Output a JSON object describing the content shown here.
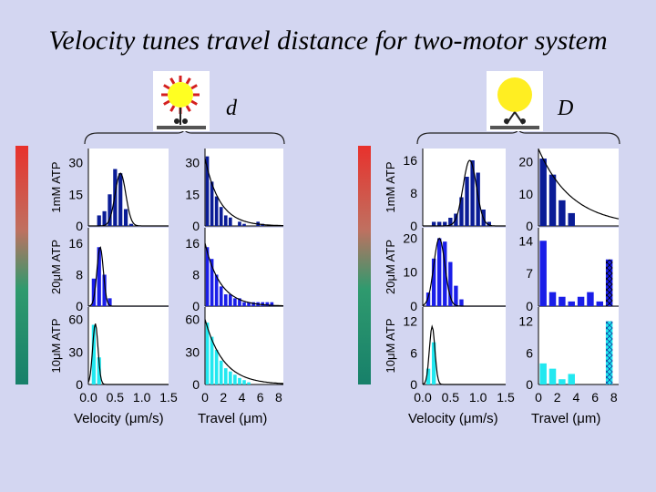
{
  "title": "Velocity tunes travel distance for two-motor system",
  "colors": {
    "background": "#d3d6f1",
    "row_1mM": "#0a1c96",
    "row_20uM": "#1a1ee8",
    "row_10uM": "#22e8f0",
    "fit_curve": "#000000",
    "bead_small": "#ffff22",
    "bead_large": "#ffee22",
    "motor_red": "#d42020",
    "track": "#555555"
  },
  "icons": {
    "left_bead": "bead-with-many-motors-icon",
    "right_bead": "bead-with-two-motors-icon",
    "row_marker": "gradient-bar-icon"
  },
  "panels": [
    {
      "letter": "d",
      "row_labels": [
        "1mM ATP",
        "20μM ATP",
        "10μM ATP"
      ],
      "xlabel_velocity": "Velocity (μm/s)",
      "xlabel_travel": "Travel (μm)",
      "velocity_ticks": [
        "0.0",
        "0.5",
        "1.0",
        "1.5"
      ],
      "travel_ticks": [
        "0",
        "2",
        "4",
        "6",
        "8"
      ]
    },
    {
      "letter": "D",
      "row_labels": [
        "1mM ATP",
        "20μM ATP",
        "10μM ATP"
      ],
      "xlabel_velocity": "Velocity (μm/s)",
      "xlabel_travel": "Travel (μm)",
      "velocity_ticks": [
        "0.0",
        "0.5",
        "1.0",
        "1.5"
      ],
      "travel_ticks": [
        "0",
        "2",
        "4",
        "6",
        "8"
      ]
    }
  ],
  "chart_data": [
    {
      "type": "bar",
      "panel": "d",
      "row": "1mM ATP",
      "measure": "velocity",
      "x": [
        0.2,
        0.3,
        0.4,
        0.5,
        0.6,
        0.7,
        0.8
      ],
      "values": [
        5,
        7,
        15,
        27,
        25,
        8,
        1
      ],
      "fit": "gaussian",
      "fit_mean": 0.6,
      "fit_sd": 0.1,
      "fit_peak": 25,
      "xlim": [
        0,
        1.5
      ],
      "ylim": [
        0,
        35
      ],
      "yticks": [
        "0",
        "15",
        "30"
      ]
    },
    {
      "type": "bar",
      "panel": "d",
      "row": "1mM ATP",
      "measure": "travel",
      "x": [
        0.25,
        0.75,
        1.25,
        1.75,
        2.25,
        2.75,
        3.75,
        4.25,
        5.75,
        6.25
      ],
      "values": [
        33,
        21,
        14,
        9,
        5,
        4,
        2,
        1,
        2,
        1
      ],
      "fit": "exponential",
      "fit_a": 32,
      "fit_k": 0.62,
      "xlim": [
        0,
        8.5
      ],
      "ylim": [
        0,
        35
      ],
      "yticks": [
        "0",
        "15",
        "30"
      ]
    },
    {
      "type": "bar",
      "panel": "d",
      "row": "20μM ATP",
      "measure": "velocity",
      "x": [
        0.1,
        0.2,
        0.3,
        0.4
      ],
      "values": [
        7,
        15,
        8,
        2
      ],
      "fit": "gaussian",
      "fit_mean": 0.22,
      "fit_sd": 0.06,
      "fit_peak": 15,
      "xlim": [
        0,
        1.5
      ],
      "ylim": [
        0,
        19
      ],
      "yticks": [
        "0",
        "8",
        "16"
      ]
    },
    {
      "type": "bar",
      "panel": "d",
      "row": "20μM ATP",
      "measure": "travel",
      "x": [
        0.25,
        0.75,
        1.25,
        1.75,
        2.25,
        2.75,
        3.25,
        3.75,
        4.25,
        4.75,
        5.25,
        5.75,
        6.25,
        6.75,
        7.25
      ],
      "values": [
        15,
        12,
        8,
        5,
        3,
        3,
        2,
        2,
        1,
        1,
        1,
        1,
        1,
        1,
        1
      ],
      "fit": "exponential",
      "fit_a": 16,
      "fit_k": 0.6,
      "xlim": [
        0,
        8.5
      ],
      "ylim": [
        0,
        19
      ],
      "yticks": [
        "0",
        "8",
        "16"
      ]
    },
    {
      "type": "bar",
      "panel": "d",
      "row": "10μM ATP",
      "measure": "velocity",
      "x": [
        0.1,
        0.2
      ],
      "values": [
        55,
        25
      ],
      "fit": "gaussian",
      "fit_mean": 0.13,
      "fit_sd": 0.05,
      "fit_peak": 56,
      "xlim": [
        0,
        1.5
      ],
      "ylim": [
        0,
        68
      ],
      "yticks": [
        "0",
        "30",
        "60"
      ]
    },
    {
      "type": "bar",
      "panel": "d",
      "row": "10μM ATP",
      "measure": "travel",
      "x": [
        0.25,
        0.75,
        1.25,
        1.75,
        2.25,
        2.75,
        3.25,
        3.75,
        4.25,
        4.75
      ],
      "values": [
        57,
        44,
        32,
        22,
        15,
        12,
        9,
        6,
        4,
        2
      ],
      "fit": "exponential",
      "fit_a": 60,
      "fit_k": 0.5,
      "xlim": [
        0,
        8.5
      ],
      "ylim": [
        0,
        68
      ],
      "yticks": [
        "0",
        "30",
        "60"
      ]
    },
    {
      "type": "bar",
      "panel": "D",
      "row": "1mM ATP",
      "measure": "velocity",
      "x": [
        0.2,
        0.3,
        0.4,
        0.5,
        0.6,
        0.7,
        0.8,
        0.9,
        1.0,
        1.1,
        1.2
      ],
      "values": [
        1,
        1,
        1,
        2,
        3,
        7,
        12,
        16,
        13,
        4,
        1
      ],
      "fit": "gaussian",
      "fit_mean": 0.85,
      "fit_sd": 0.12,
      "fit_peak": 16,
      "xlim": [
        0,
        1.5
      ],
      "ylim": [
        0,
        18
      ],
      "yticks": [
        "0",
        "8",
        "16"
      ]
    },
    {
      "type": "bar",
      "panel": "D",
      "row": "1mM ATP",
      "measure": "travel",
      "x": [
        0.5,
        1.5,
        2.5,
        3.5
      ],
      "values": [
        21,
        16,
        8,
        4
      ],
      "fit": "exponential",
      "fit_a": 24,
      "fit_k": 0.28,
      "xlim": [
        0,
        8.5
      ],
      "ylim": [
        0,
        23
      ],
      "yticks": [
        "0",
        "10",
        "20"
      ]
    },
    {
      "type": "bar",
      "panel": "D",
      "row": "20μM ATP",
      "measure": "velocity",
      "x": [
        0.1,
        0.2,
        0.3,
        0.4,
        0.5,
        0.6,
        0.7
      ],
      "values": [
        4,
        14,
        20,
        19,
        13,
        6,
        2
      ],
      "fit": "gaussian",
      "fit_mean": 0.3,
      "fit_sd": 0.1,
      "fit_peak": 20,
      "xlim": [
        0,
        1.5
      ],
      "ylim": [
        0,
        22
      ],
      "yticks": [
        "0",
        "10",
        "20"
      ]
    },
    {
      "type": "bar",
      "panel": "D",
      "row": "20μM ATP",
      "measure": "travel",
      "x": [
        0.5,
        1.5,
        2.5,
        3.5,
        4.5,
        5.5,
        6.5,
        7.5
      ],
      "values": [
        14,
        3,
        2,
        1,
        2,
        3,
        1,
        10
      ],
      "last_bar_hatched": true,
      "xlim": [
        0,
        8.5
      ],
      "ylim": [
        0,
        16
      ],
      "yticks": [
        "0",
        "7",
        "14"
      ]
    },
    {
      "type": "bar",
      "panel": "D",
      "row": "10μM ATP",
      "measure": "velocity",
      "x": [
        0.1,
        0.2
      ],
      "values": [
        3,
        8
      ],
      "fit": "gaussian",
      "fit_mean": 0.17,
      "fit_sd": 0.05,
      "fit_peak": 11,
      "xlim": [
        0,
        1.5
      ],
      "ylim": [
        0,
        14
      ],
      "yticks": [
        "0",
        "6",
        "12"
      ]
    },
    {
      "type": "bar",
      "panel": "D",
      "row": "10μM ATP",
      "measure": "travel",
      "x": [
        0.5,
        1.5,
        2.5,
        3.5,
        4.5,
        5.5,
        6.5,
        7.5
      ],
      "values": [
        4,
        3,
        1,
        2,
        0,
        0,
        0,
        12
      ],
      "last_bar_hatched": true,
      "xlim": [
        0,
        8.5
      ],
      "ylim": [
        0,
        14
      ],
      "yticks": [
        "0",
        "6",
        "12"
      ]
    }
  ]
}
